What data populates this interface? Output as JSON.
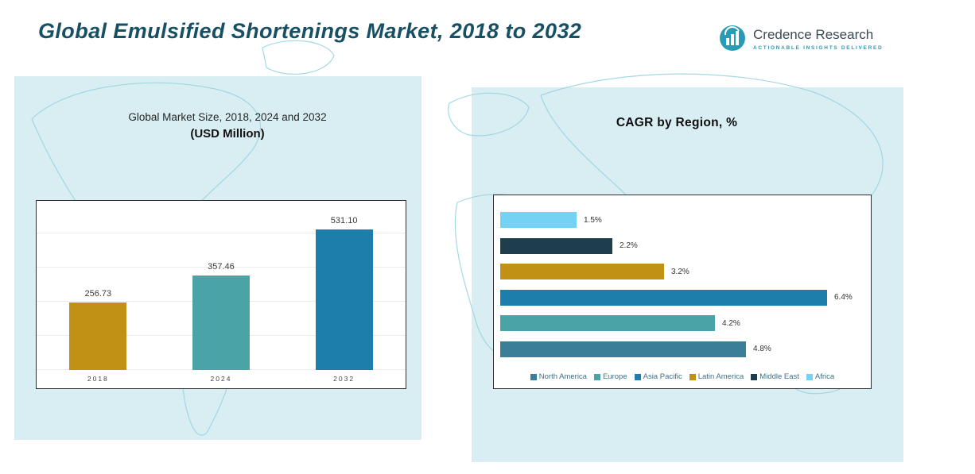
{
  "header": {
    "title": "Global Emulsified Shortenings Market, 2018 to 2032",
    "logo": {
      "name": "Credence Research",
      "tagline": "Actionable Insights Delivered",
      "brand_color": "#2a9bb5"
    }
  },
  "colors": {
    "title_text": "#174f63",
    "map_background": "#d9eef3",
    "map_outline": "#9bd4e0",
    "gold": "#c19116",
    "teal": "#4aa3a6",
    "blue": "#1d7eac",
    "dark_navy": "#1e3d4d",
    "light_sky": "#74d3f5",
    "steel": "#3b7e97"
  },
  "chart_data": [
    {
      "type": "bar",
      "title": "Global Market Size, 2018, 2024 and 2032",
      "subtitle": "(USD Million)",
      "categories": [
        "2018",
        "2024",
        "2032"
      ],
      "values": [
        256.73,
        357.46,
        531.1
      ],
      "value_labels": [
        "256.73",
        "357.46",
        "531.10"
      ],
      "colors": [
        "#c19116",
        "#4aa3a6",
        "#1d7eac"
      ],
      "xlabel": "",
      "ylabel": "USD Million",
      "ylim": [
        0,
        640
      ],
      "grid": true,
      "legend_position": "none"
    },
    {
      "type": "bar-horizontal",
      "title": "CAGR by Region, %",
      "bars": [
        {
          "region": "Africa",
          "value": 1.5,
          "label": "1.5%",
          "color": "#74d3f5"
        },
        {
          "region": "Middle East",
          "value": 2.2,
          "label": "2.2%",
          "color": "#1e3d4d"
        },
        {
          "region": "Latin America",
          "value": 3.2,
          "label": "3.2%",
          "color": "#c19116"
        },
        {
          "region": "Asia Pacific",
          "value": 6.4,
          "label": "6.4%",
          "color": "#1d7eac"
        },
        {
          "region": "Europe",
          "value": 4.2,
          "label": "4.2%",
          "color": "#4aa3a6"
        },
        {
          "region": "North America",
          "value": 4.8,
          "label": "4.8%",
          "color": "#3b7e97"
        }
      ],
      "legend": [
        {
          "label": "North America",
          "color": "#3b7e97"
        },
        {
          "label": "Europe",
          "color": "#4aa3a6"
        },
        {
          "label": "Asia Pacific",
          "color": "#1d7eac"
        },
        {
          "label": "Latin America",
          "color": "#c19116"
        },
        {
          "label": "Middle East",
          "color": "#1e3d4d"
        },
        {
          "label": "Africa",
          "color": "#74d3f5"
        }
      ],
      "xlim": [
        0,
        7
      ],
      "legend_position": "bottom",
      "grid": false
    }
  ]
}
